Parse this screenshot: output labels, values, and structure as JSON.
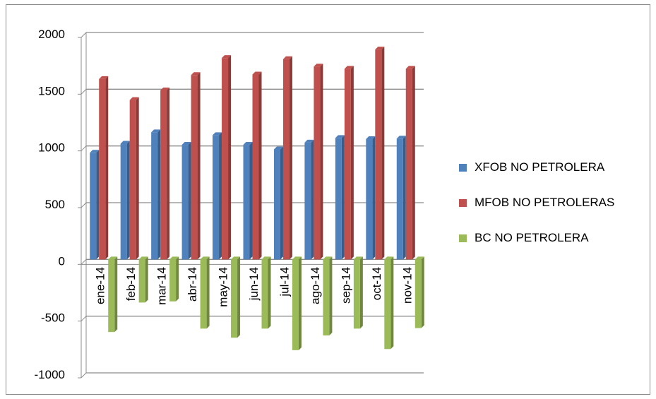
{
  "chart_data": {
    "type": "bar",
    "categories": [
      "ene-14",
      "feb-14",
      "mar-14",
      "abr-14",
      "may-14",
      "jun-14",
      "jul-14",
      "ago-14",
      "sep-14",
      "oct-14",
      "nov-14"
    ],
    "series": [
      {
        "name": "XFOB NO PETROLERA",
        "color": "#4f81bd",
        "values": [
          940,
          1020,
          1120,
          1010,
          1095,
          1010,
          970,
          1030,
          1070,
          1060,
          1065
        ]
      },
      {
        "name": "MFOB NO PETROLERAS",
        "color": "#c0504d",
        "values": [
          1590,
          1405,
          1490,
          1625,
          1775,
          1630,
          1765,
          1700,
          1680,
          1850,
          1680
        ]
      },
      {
        "name": "BC NO PETROLERA",
        "color": "#9bbb59",
        "values": [
          -640,
          -380,
          -370,
          -610,
          -690,
          -610,
          -800,
          -670,
          -610,
          -790,
          -605
        ]
      }
    ],
    "yticks": [
      2000,
      1500,
      1000,
      500,
      0,
      -500,
      -1000
    ],
    "ylim": [
      -1000,
      2000
    ],
    "grid": true,
    "legend_position": "right"
  }
}
